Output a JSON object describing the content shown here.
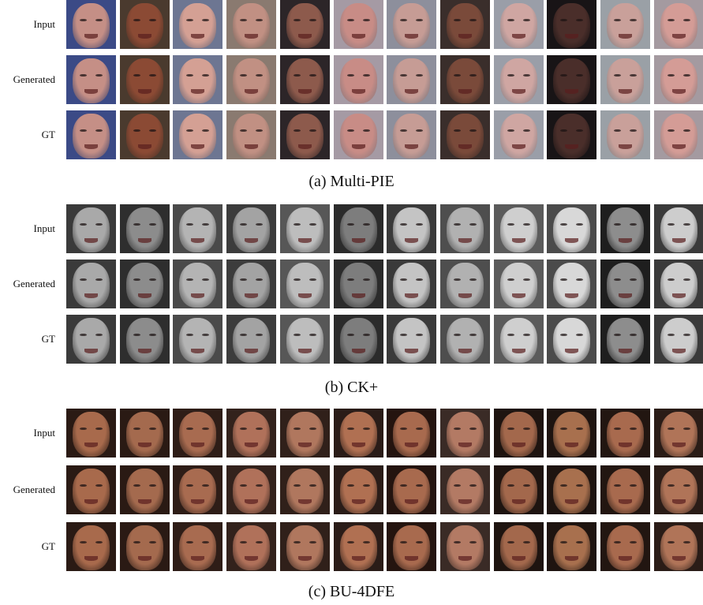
{
  "panels": [
    {
      "caption": "(a) Multi-PIE",
      "rows": [
        "Input",
        "Generated",
        "GT"
      ],
      "tones": {
        "bg": [
          "#3b4a86",
          "#4a3a2e",
          "#6d7692",
          "#8a7a70",
          "#2c2528",
          "#a59aa4",
          "#8d8f9c",
          "#3a2e2b",
          "#9a9ea8",
          "#181416",
          "#9aa0a6",
          "#a49aa0"
        ],
        "skin": [
          "#c58f86",
          "#8b4a34",
          "#d4a094",
          "#c19083",
          "#8d5a4c",
          "#c88c86",
          "#c69c95",
          "#7a4a3a",
          "#cfa6a2",
          "#4a2e2a",
          "#c9a09a",
          "#d49c96"
        ]
      }
    },
    {
      "caption": "(b) CK+",
      "rows": [
        "Input",
        "Generated",
        "GT"
      ],
      "tones": {
        "bg": [
          "#3a3a3a",
          "#2e2e2e",
          "#4a4a4a",
          "#3c3c3c",
          "#575757",
          "#2b2b2b",
          "#3a3a3a",
          "#4e4e4e",
          "#5b5b5b",
          "#4b4b4b",
          "#1e1e1e",
          "#3a3a3a"
        ],
        "skin": [
          "#a9a9a9",
          "#8c8c8c",
          "#b4b4b4",
          "#a3a3a3",
          "#bdbdbd",
          "#7d7d7d",
          "#c4c4c4",
          "#b1b1b1",
          "#cfcfcf",
          "#d8d8d8",
          "#8d8d8d",
          "#cdcdcd"
        ]
      }
    },
    {
      "caption": "(c) BU-4DFE",
      "rows": [
        "Input",
        "Generated",
        "GT"
      ],
      "tones": {
        "bg": [
          "#2a1a14",
          "#2a1a14",
          "#2e1d17",
          "#33221c",
          "#30201a",
          "#2a1c18",
          "#24140f",
          "#3a2b26",
          "#1e1410",
          "#1e1410",
          "#221611",
          "#2a1c17"
        ],
        "skin": [
          "#a86a4c",
          "#a46a4e",
          "#a86b50",
          "#b0715a",
          "#b0775e",
          "#b07052",
          "#a86a4e",
          "#b37a64",
          "#a3684c",
          "#a8704e",
          "#a86a4e",
          "#b07458"
        ]
      }
    }
  ]
}
